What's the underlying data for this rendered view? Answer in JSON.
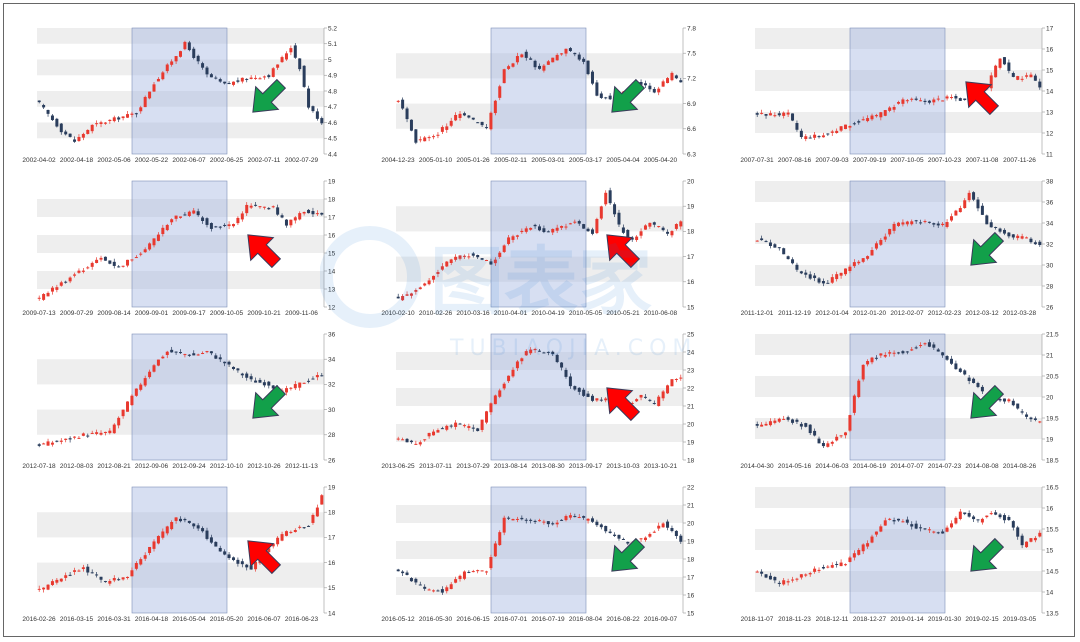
{
  "colors": {
    "up": "#e8392f",
    "down": "#2a3d5c",
    "band": "#eeeeee",
    "highlight": "#9fb3e0",
    "arrow_up": "#ff0000",
    "arrow_down": "#12a04a"
  },
  "watermark": {
    "text": "图表家",
    "sub": "TUBIAOJIA.COM"
  },
  "chart_data": [
    {
      "type": "candlestick",
      "arrow": "down",
      "x_ticks": [
        "2002-04-02",
        "2002-04-18",
        "2002-05-06",
        "2002-05-22",
        "2002-06-07",
        "2002-06-25",
        "2002-07-11",
        "2002-07-29"
      ],
      "y_ticks": [
        "5.2",
        "5.1",
        "5",
        "4.9",
        "4.8",
        "4.7",
        "4.6",
        "4.5",
        "4.4"
      ],
      "ylim": [
        4.4,
        5.2
      ],
      "anchors": [
        [
          0,
          4.72
        ],
        [
          5,
          4.55
        ],
        [
          8,
          4.48
        ],
        [
          12,
          4.58
        ],
        [
          18,
          4.63
        ],
        [
          22,
          4.66
        ],
        [
          26,
          4.85
        ],
        [
          33,
          5.1
        ],
        [
          38,
          4.9
        ],
        [
          42,
          4.84
        ],
        [
          47,
          4.88
        ],
        [
          52,
          4.9
        ],
        [
          57,
          5.08
        ],
        [
          59,
          4.95
        ],
        [
          61,
          4.7
        ],
        [
          64,
          4.6
        ]
      ]
    },
    {
      "type": "candlestick",
      "arrow": "down",
      "x_ticks": [
        "2004-12-23",
        "2005-01-10",
        "2005-01-26",
        "2005-02-11",
        "2005-03-01",
        "2005-03-17",
        "2005-04-04",
        "2005-04-20"
      ],
      "y_ticks": [
        "7.8",
        "7.5",
        "7.2",
        "6.9",
        "6.6",
        "6.3"
      ],
      "ylim": [
        6.3,
        7.8
      ],
      "anchors": [
        [
          0,
          6.95
        ],
        [
          4,
          6.45
        ],
        [
          9,
          6.55
        ],
        [
          14,
          6.8
        ],
        [
          20,
          6.6
        ],
        [
          24,
          7.3
        ],
        [
          28,
          7.5
        ],
        [
          32,
          7.3
        ],
        [
          38,
          7.55
        ],
        [
          42,
          7.4
        ],
        [
          45,
          7.0
        ],
        [
          49,
          6.95
        ],
        [
          54,
          7.15
        ],
        [
          58,
          7.05
        ],
        [
          62,
          7.25
        ],
        [
          64,
          7.15
        ]
      ]
    },
    {
      "type": "candlestick",
      "arrow": "up",
      "x_ticks": [
        "2007-07-31",
        "2007-08-16",
        "2007-09-03",
        "2007-09-19",
        "2007-10-05",
        "2007-10-23",
        "2007-11-08",
        "2007-11-26"
      ],
      "y_ticks": [
        "17",
        "16",
        "15",
        "14",
        "13",
        "12",
        "11"
      ],
      "ylim": [
        11,
        17
      ],
      "anchors": [
        [
          0,
          12.9
        ],
        [
          7,
          12.9
        ],
        [
          10,
          11.8
        ],
        [
          15,
          11.9
        ],
        [
          22,
          12.5
        ],
        [
          28,
          12.9
        ],
        [
          33,
          13.6
        ],
        [
          38,
          13.5
        ],
        [
          44,
          13.7
        ],
        [
          48,
          13.5
        ],
        [
          52,
          14.2
        ],
        [
          55,
          15.6
        ],
        [
          58,
          14.6
        ],
        [
          62,
          14.7
        ],
        [
          64,
          14.1
        ]
      ]
    },
    {
      "type": "candlestick",
      "arrow": "up",
      "x_ticks": [
        "2009-07-13",
        "2009-07-29",
        "2009-08-14",
        "2009-09-01",
        "2009-09-17",
        "2009-10-05",
        "2009-10-21",
        "2009-11-06"
      ],
      "y_ticks": [
        "19",
        "18",
        "17",
        "16",
        "15",
        "14",
        "13",
        "12"
      ],
      "ylim": [
        12,
        19
      ],
      "anchors": [
        [
          0,
          12.5
        ],
        [
          8,
          13.8
        ],
        [
          14,
          14.7
        ],
        [
          18,
          14.2
        ],
        [
          24,
          15.2
        ],
        [
          30,
          16.9
        ],
        [
          35,
          17.3
        ],
        [
          39,
          16.4
        ],
        [
          44,
          16.6
        ],
        [
          47,
          17.6
        ],
        [
          53,
          17.5
        ],
        [
          56,
          16.6
        ],
        [
          60,
          17.3
        ],
        [
          64,
          17.2
        ]
      ]
    },
    {
      "type": "candlestick",
      "arrow": "up",
      "x_ticks": [
        "2010-02-10",
        "2010-02-26",
        "2010-03-16",
        "2010-04-01",
        "2010-04-19",
        "2010-05-05",
        "2010-05-21",
        "2010-06-08"
      ],
      "y_ticks": [
        "20",
        "19",
        "18",
        "17",
        "16",
        "15"
      ],
      "ylim": [
        15,
        20
      ],
      "anchors": [
        [
          0,
          15.3
        ],
        [
          5,
          15.8
        ],
        [
          12,
          16.9
        ],
        [
          17,
          17.1
        ],
        [
          21,
          16.7
        ],
        [
          25,
          17.7
        ],
        [
          30,
          18.2
        ],
        [
          34,
          18.0
        ],
        [
          40,
          18.4
        ],
        [
          44,
          17.9
        ],
        [
          47,
          19.6
        ],
        [
          50,
          18.2
        ],
        [
          53,
          17.6
        ],
        [
          57,
          18.4
        ],
        [
          61,
          17.9
        ],
        [
          64,
          18.4
        ]
      ]
    },
    {
      "type": "candlestick",
      "arrow": "down",
      "x_ticks": [
        "2011-12-01",
        "2011-12-19",
        "2012-01-04",
        "2012-01-20",
        "2012-02-07",
        "2012-02-23",
        "2012-03-12",
        "2012-03-28"
      ],
      "y_ticks": [
        "38",
        "36",
        "34",
        "32",
        "30",
        "28",
        "26"
      ],
      "ylim": [
        26,
        38
      ],
      "anchors": [
        [
          0,
          32.5
        ],
        [
          5,
          31.5
        ],
        [
          9,
          29.5
        ],
        [
          15,
          28.2
        ],
        [
          20,
          29.5
        ],
        [
          25,
          31.0
        ],
        [
          31,
          33.8
        ],
        [
          36,
          34.2
        ],
        [
          42,
          33.8
        ],
        [
          46,
          35.5
        ],
        [
          48,
          37.0
        ],
        [
          52,
          34.0
        ],
        [
          57,
          32.8
        ],
        [
          61,
          32.5
        ],
        [
          64,
          31.8
        ]
      ]
    },
    {
      "type": "candlestick",
      "arrow": "down",
      "x_ticks": [
        "2012-07-18",
        "2012-08-03",
        "2012-08-21",
        "2012-09-06",
        "2012-09-24",
        "2012-10-10",
        "2012-10-26",
        "2012-11-13"
      ],
      "y_ticks": [
        "36",
        "34",
        "32",
        "30",
        "28",
        "26"
      ],
      "ylim": [
        26,
        36
      ],
      "anchors": [
        [
          0,
          27.2
        ],
        [
          6,
          27.6
        ],
        [
          10,
          28.0
        ],
        [
          16,
          28.2
        ],
        [
          20,
          30.5
        ],
        [
          26,
          33.6
        ],
        [
          29,
          34.6
        ],
        [
          35,
          34.3
        ],
        [
          38,
          34.6
        ],
        [
          42,
          33.7
        ],
        [
          48,
          32.3
        ],
        [
          52,
          32.0
        ],
        [
          55,
          31.4
        ],
        [
          60,
          32.2
        ],
        [
          64,
          32.8
        ]
      ]
    },
    {
      "type": "candlestick",
      "arrow": "up",
      "x_ticks": [
        "2013-06-25",
        "2013-07-11",
        "2013-07-29",
        "2013-08-14",
        "2013-08-30",
        "2013-09-17",
        "2013-10-03",
        "2013-10-21"
      ],
      "y_ticks": [
        "25",
        "24",
        "23",
        "22",
        "21",
        "20",
        "19",
        "18"
      ],
      "ylim": [
        18,
        25
      ],
      "anchors": [
        [
          0,
          19.2
        ],
        [
          4,
          18.9
        ],
        [
          8,
          19.6
        ],
        [
          13,
          20.0
        ],
        [
          18,
          19.7
        ],
        [
          22,
          21.5
        ],
        [
          27,
          23.5
        ],
        [
          30,
          24.2
        ],
        [
          35,
          23.9
        ],
        [
          39,
          22.2
        ],
        [
          44,
          21.3
        ],
        [
          48,
          21.4
        ],
        [
          51,
          20.9
        ],
        [
          55,
          21.6
        ],
        [
          58,
          21.1
        ],
        [
          62,
          22.5
        ],
        [
          64,
          22.6
        ]
      ]
    },
    {
      "type": "candlestick",
      "arrow": "down",
      "x_ticks": [
        "2014-04-30",
        "2014-05-16",
        "2014-06-03",
        "2014-06-19",
        "2014-07-07",
        "2014-07-23",
        "2014-08-08",
        "2014-08-26"
      ],
      "y_ticks": [
        "21.5",
        "21",
        "20.5",
        "20",
        "19.5",
        "19",
        "18.5"
      ],
      "ylim": [
        18.5,
        21.5
      ],
      "anchors": [
        [
          0,
          19.3
        ],
        [
          6,
          19.5
        ],
        [
          11,
          19.3
        ],
        [
          15,
          18.8
        ],
        [
          20,
          19.2
        ],
        [
          24,
          20.8
        ],
        [
          28,
          21.0
        ],
        [
          34,
          21.1
        ],
        [
          38,
          21.3
        ],
        [
          43,
          20.9
        ],
        [
          48,
          20.4
        ],
        [
          52,
          20.0
        ],
        [
          57,
          19.9
        ],
        [
          61,
          19.5
        ],
        [
          64,
          19.4
        ]
      ]
    },
    {
      "type": "candlestick",
      "arrow": "up",
      "x_ticks": [
        "2016-02-26",
        "2016-03-15",
        "2016-03-31",
        "2016-04-18",
        "2016-05-04",
        "2016-05-20",
        "2016-06-07",
        "2016-06-23"
      ],
      "y_ticks": [
        "19",
        "18",
        "17",
        "16",
        "15",
        "14"
      ],
      "ylim": [
        14,
        19
      ],
      "anchors": [
        [
          0,
          14.9
        ],
        [
          6,
          15.5
        ],
        [
          10,
          15.8
        ],
        [
          15,
          15.2
        ],
        [
          20,
          15.5
        ],
        [
          26,
          16.8
        ],
        [
          31,
          17.8
        ],
        [
          36,
          17.4
        ],
        [
          40,
          16.6
        ],
        [
          45,
          16.0
        ],
        [
          48,
          15.8
        ],
        [
          53,
          16.8
        ],
        [
          56,
          17.2
        ],
        [
          61,
          17.5
        ],
        [
          64,
          18.6
        ]
      ]
    },
    {
      "type": "candlestick",
      "arrow": "down",
      "x_ticks": [
        "2016-05-12",
        "2016-05-30",
        "2016-06-15",
        "2016-07-01",
        "2016-07-19",
        "2016-08-04",
        "2016-08-22",
        "2016-09-07"
      ],
      "y_ticks": [
        "22",
        "21",
        "20",
        "19",
        "18",
        "17",
        "16",
        "15"
      ],
      "ylim": [
        15,
        22
      ],
      "anchors": [
        [
          0,
          17.4
        ],
        [
          6,
          16.3
        ],
        [
          10,
          16.2
        ],
        [
          15,
          17.2
        ],
        [
          20,
          17.4
        ],
        [
          24,
          20.2
        ],
        [
          29,
          20.2
        ],
        [
          35,
          20.0
        ],
        [
          39,
          20.4
        ],
        [
          44,
          20.1
        ],
        [
          48,
          19.4
        ],
        [
          52,
          18.9
        ],
        [
          56,
          19.2
        ],
        [
          60,
          20.0
        ],
        [
          64,
          19.0
        ]
      ]
    },
    {
      "type": "candlestick",
      "arrow": "down",
      "x_ticks": [
        "2018-11-07",
        "2018-11-23",
        "2018-12-11",
        "2018-12-27",
        "2019-01-14",
        "2019-01-30",
        "2019-02-15",
        "2019-03-05"
      ],
      "y_ticks": [
        "16.5",
        "16",
        "15.5",
        "15",
        "14.5",
        "14",
        "13.5"
      ],
      "ylim": [
        13.5,
        16.5
      ],
      "anchors": [
        [
          0,
          14.5
        ],
        [
          5,
          14.2
        ],
        [
          10,
          14.4
        ],
        [
          15,
          14.6
        ],
        [
          20,
          14.7
        ],
        [
          25,
          15.2
        ],
        [
          29,
          15.7
        ],
        [
          33,
          15.7
        ],
        [
          37,
          15.5
        ],
        [
          42,
          15.4
        ],
        [
          46,
          15.9
        ],
        [
          50,
          15.7
        ],
        [
          53,
          15.9
        ],
        [
          57,
          15.7
        ],
        [
          60,
          15.1
        ],
        [
          64,
          15.4
        ]
      ]
    }
  ]
}
